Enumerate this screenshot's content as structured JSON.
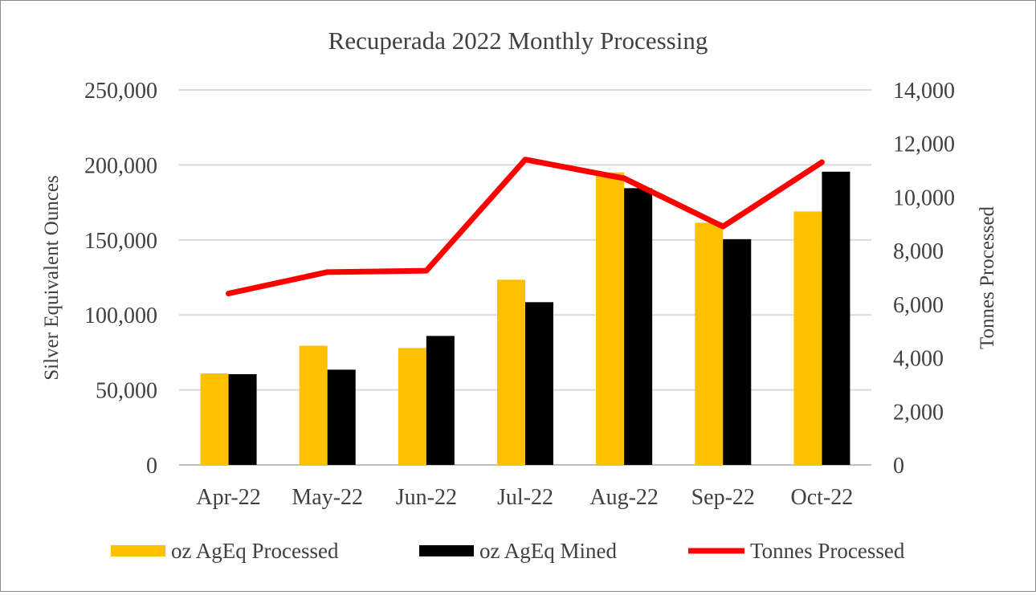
{
  "chart_data": {
    "type": "bar",
    "title": "Recuperada 2022 Monthly Processing",
    "categories": [
      "Apr-22",
      "May-22",
      "Jun-22",
      "Jul-22",
      "Aug-22",
      "Sep-22",
      "Oct-22"
    ],
    "series": [
      {
        "name": "oz AgEq Processed",
        "type": "bar",
        "axis": "left",
        "color": "#FFC000",
        "values": [
          61000,
          79500,
          78000,
          123500,
          195000,
          161500,
          169000
        ]
      },
      {
        "name": "oz AgEq Mined",
        "type": "bar",
        "axis": "left",
        "color": "#000000",
        "values": [
          60500,
          63500,
          86000,
          108500,
          184500,
          150500,
          195500
        ]
      },
      {
        "name": "Tonnes Processed",
        "type": "line",
        "axis": "right",
        "color": "#FF0000",
        "values": [
          6400,
          7200,
          7250,
          11400,
          10700,
          8900,
          11300
        ]
      }
    ],
    "ylabel": "Silver Equivalent Ounces",
    "y2label": "Tonnes Processed",
    "ylim": [
      0,
      250000
    ],
    "y2lim": [
      0,
      14000
    ],
    "yticks": [
      "0",
      "50,000",
      "100,000",
      "150,000",
      "200,000",
      "250,000"
    ],
    "y2ticks": [
      "0",
      "2,000",
      "4,000",
      "6,000",
      "8,000",
      "10,000",
      "12,000",
      "14,000"
    ],
    "grid": true,
    "legend": "bottom"
  }
}
